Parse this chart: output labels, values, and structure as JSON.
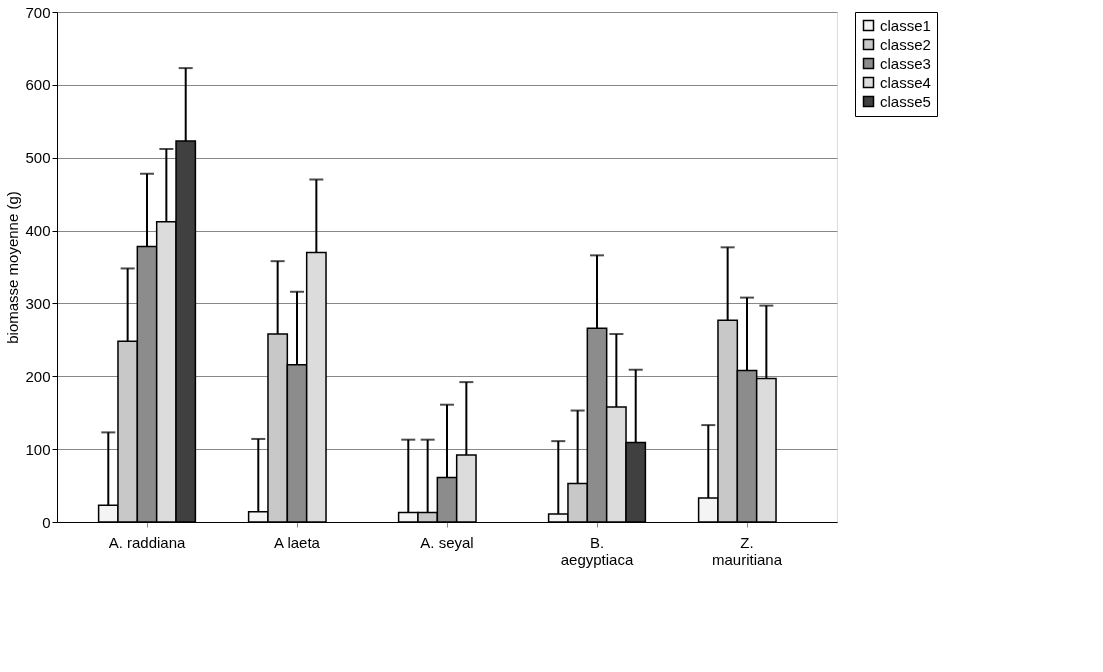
{
  "chart_data": {
    "type": "bar",
    "ylabel": "biomasse moyenne (g)",
    "categories": [
      "A. raddiana",
      "A laeta",
      "A. seyal",
      "B. aegyptiaca",
      "Z. mauritiana"
    ],
    "series": [
      {
        "name": "classe1",
        "color": "#f4f4f4",
        "values": [
          23,
          14,
          13,
          11,
          33
        ],
        "errors": [
          100,
          100,
          100,
          100,
          100
        ]
      },
      {
        "name": "classe2",
        "color": "#c8c8c8",
        "values": [
          248,
          258,
          13,
          53,
          277
        ],
        "errors": [
          100,
          100,
          100,
          100,
          100
        ]
      },
      {
        "name": "classe3",
        "color": "#8c8c8c",
        "values": [
          378,
          216,
          61,
          266,
          208
        ],
        "errors": [
          100,
          100,
          100,
          100,
          100
        ]
      },
      {
        "name": "classe4",
        "color": "#dcdcdc",
        "values": [
          412,
          370,
          92,
          158,
          197
        ],
        "errors": [
          100,
          100,
          100,
          100,
          100
        ]
      },
      {
        "name": "classe5",
        "color": "#404040",
        "values": [
          523,
          null,
          null,
          109,
          null
        ],
        "errors": [
          100,
          null,
          null,
          100,
          null
        ]
      }
    ],
    "ylim": [
      0,
      700
    ],
    "yticks": [
      0,
      100,
      200,
      300,
      400,
      500,
      600,
      700
    ],
    "grid": "y",
    "legend": "right"
  }
}
